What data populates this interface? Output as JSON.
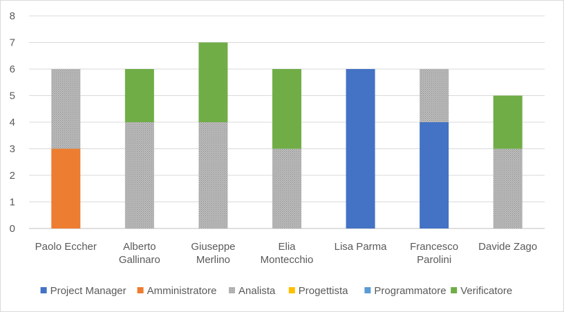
{
  "chart_data": {
    "type": "bar",
    "stacked": true,
    "title": "",
    "xlabel": "",
    "ylabel": "",
    "ylim": [
      0,
      8
    ],
    "yticks": [
      0,
      1,
      2,
      3,
      4,
      5,
      6,
      7,
      8
    ],
    "grid": true,
    "legend_position": "bottom",
    "categories": [
      [
        "Paolo Eccher"
      ],
      [
        "Alberto",
        "Gallinaro"
      ],
      [
        "Giuseppe",
        "Merlino"
      ],
      [
        "Elia",
        "Montecchio"
      ],
      [
        "Lisa Parma"
      ],
      [
        "Francesco",
        "Parolini"
      ],
      [
        "Davide Zago"
      ]
    ],
    "series": [
      {
        "name": "Project Manager",
        "color": "#4472c4",
        "pattern": "solid",
        "values": [
          0,
          0,
          0,
          0,
          6,
          4,
          0
        ]
      },
      {
        "name": "Amministratore",
        "color": "#ed7d31",
        "pattern": "solid",
        "values": [
          3,
          0,
          0,
          0,
          0,
          0,
          0
        ]
      },
      {
        "name": "Analista",
        "color": "#a5a5a5",
        "pattern": "dotted",
        "values": [
          3,
          4,
          4,
          3,
          0,
          2,
          3
        ]
      },
      {
        "name": "Progettista",
        "color": "#ffc000",
        "pattern": "solid",
        "values": [
          0,
          0,
          0,
          0,
          0,
          0,
          0
        ]
      },
      {
        "name": "Programmatore",
        "color": "#5b9bd5",
        "pattern": "solid",
        "values": [
          0,
          0,
          0,
          0,
          0,
          0,
          0
        ]
      },
      {
        "name": "Verificatore",
        "color": "#70ad47",
        "pattern": "solid",
        "values": [
          0,
          2,
          3,
          3,
          0,
          0,
          2
        ]
      }
    ]
  }
}
